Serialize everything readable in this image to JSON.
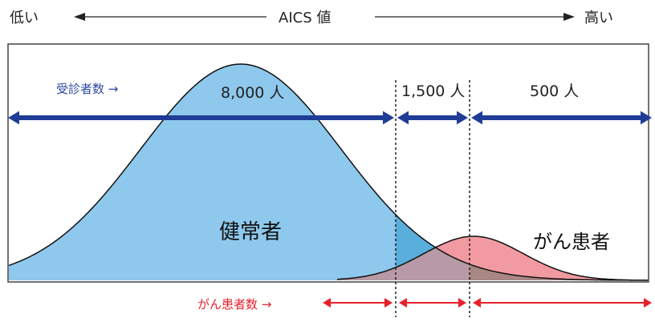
{
  "header": {
    "low_label": "低い",
    "axis_label": "AICS 値",
    "high_label": "高い"
  },
  "examinees_row": {
    "label": "受診者数 →",
    "segments": [
      {
        "text": "8,000 人",
        "count": 8000
      },
      {
        "text": "1,500 人",
        "count": 1500
      },
      {
        "text": "500 人",
        "count": 500
      }
    ]
  },
  "curves": {
    "healthy_label": "健常者",
    "cancer_label": "がん患者"
  },
  "cancer_row": {
    "label": "がん患者数 →"
  },
  "colors": {
    "healthy_fill": "#8ec8ec",
    "overlap_fill": "#5aaedc",
    "cancer_fill": "#f29aa2",
    "cancer_overlap_fill": "#b89aa6",
    "mixed_fill": "#a98784",
    "blue_arrow": "#1f3c96",
    "red_arrow": "#e8202a"
  }
}
